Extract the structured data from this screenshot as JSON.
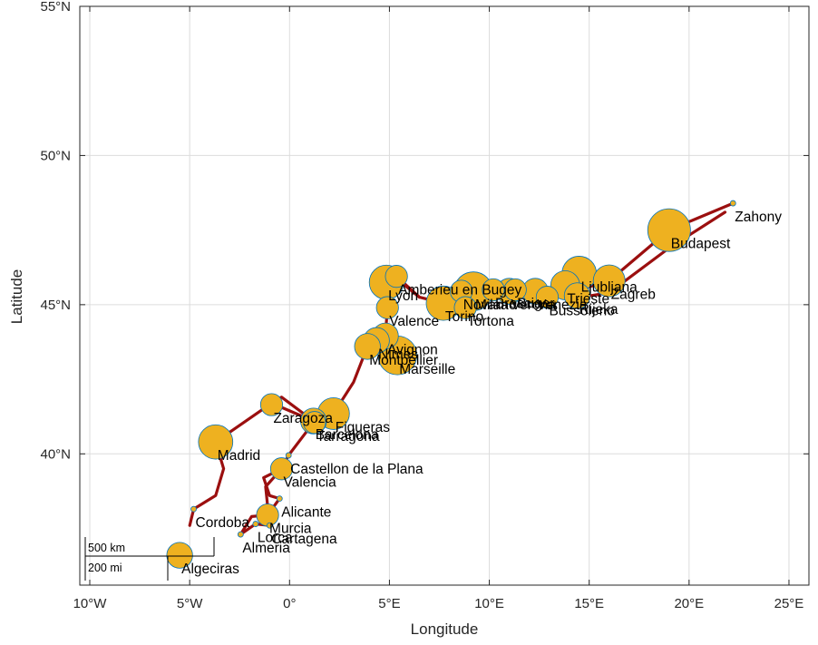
{
  "map": {
    "xlabel": "Longitude",
    "ylabel": "Latitude",
    "x_range": [
      -10.5,
      26
    ],
    "y_range": [
      35.6,
      55
    ],
    "x_ticks": [
      {
        "v": -10,
        "label": "10°W"
      },
      {
        "v": -5,
        "label": "5°W"
      },
      {
        "v": 0,
        "label": "0°"
      },
      {
        "v": 5,
        "label": "5°E"
      },
      {
        "v": 10,
        "label": "10°E"
      },
      {
        "v": 15,
        "label": "15°E"
      },
      {
        "v": 20,
        "label": "20°E"
      },
      {
        "v": 25,
        "label": "25°E"
      }
    ],
    "y_ticks": [
      {
        "v": 40,
        "label": "40°N"
      },
      {
        "v": 45,
        "label": "45°N"
      },
      {
        "v": 50,
        "label": "50°N"
      },
      {
        "v": 55,
        "label": "55°N"
      }
    ],
    "grid": true,
    "colors": {
      "route": "#9b0f0f",
      "bubble_fill": "#eeb120",
      "bubble_edge": "#0072bd"
    },
    "scale_bar": {
      "km_label": "500 km",
      "mi_label": "200 mi",
      "position": "bottom-left"
    }
  },
  "chart_data": {
    "type": "scatter",
    "cities": [
      {
        "name": "Zahony",
        "lon": 22.2,
        "lat": 48.4,
        "size": 1
      },
      {
        "name": "Budapest",
        "lon": 19.0,
        "lat": 47.5,
        "size": 10
      },
      {
        "name": "Ljubljana",
        "lon": 14.5,
        "lat": 46.05,
        "size": 6
      },
      {
        "name": "Zagreb",
        "lon": 16.0,
        "lat": 45.8,
        "size": 5
      },
      {
        "name": "Trieste",
        "lon": 13.8,
        "lat": 45.65,
        "size": 4
      },
      {
        "name": "Rijeka",
        "lon": 14.4,
        "lat": 45.3,
        "size": 3
      },
      {
        "name": "Venezia",
        "lon": 12.3,
        "lat": 45.45,
        "size": 3
      },
      {
        "name": "Verona",
        "lon": 11.0,
        "lat": 45.45,
        "size": 3
      },
      {
        "name": "Brescia",
        "lon": 10.2,
        "lat": 45.5,
        "size": 2
      },
      {
        "name": "Milano",
        "lon": 9.2,
        "lat": 45.45,
        "size": 8
      },
      {
        "name": "Novara",
        "lon": 8.6,
        "lat": 45.45,
        "size": 2
      },
      {
        "name": "Torino",
        "lon": 7.7,
        "lat": 45.05,
        "size": 6
      },
      {
        "name": "Tortona",
        "lon": 8.8,
        "lat": 44.9,
        "size": 2
      },
      {
        "name": "Bussoleno",
        "lon": 12.9,
        "lat": 45.25,
        "size": 2
      },
      {
        "name": "Buger",
        "lon": 11.3,
        "lat": 45.5,
        "size": 2
      },
      {
        "name": "Amberieu en Bugey",
        "lon": 5.35,
        "lat": 45.95,
        "size": 2
      },
      {
        "name": "Lyon",
        "lon": 4.85,
        "lat": 45.75,
        "size": 6
      },
      {
        "name": "Valence",
        "lon": 4.9,
        "lat": 44.9,
        "size": 2
      },
      {
        "name": "Avignon",
        "lon": 4.8,
        "lat": 43.95,
        "size": 3
      },
      {
        "name": "Nimes",
        "lon": 4.35,
        "lat": 43.8,
        "size": 3
      },
      {
        "name": "Montpellier",
        "lon": 3.9,
        "lat": 43.6,
        "size": 3
      },
      {
        "name": "Marseille",
        "lon": 5.4,
        "lat": 43.3,
        "size": 8
      },
      {
        "name": "Figueras",
        "lon": 2.2,
        "lat": 41.35,
        "size": 5
      },
      {
        "name": "Barcelona",
        "lon": 1.2,
        "lat": 41.1,
        "size": 3
      },
      {
        "name": "Tarragona",
        "lon": 1.25,
        "lat": 41.05,
        "size": 2
      },
      {
        "name": "Zaragoza",
        "lon": -0.9,
        "lat": 41.65,
        "size": 2
      },
      {
        "name": "Madrid",
        "lon": -3.7,
        "lat": 40.4,
        "size": 6
      },
      {
        "name": "Castellon de la Plana",
        "lon": -0.05,
        "lat": 39.95,
        "size": 1
      },
      {
        "name": "Valencia",
        "lon": -0.4,
        "lat": 39.5,
        "size": 2
      },
      {
        "name": "Alicante",
        "lon": -0.5,
        "lat": 38.5,
        "size": 1
      },
      {
        "name": "Murcia",
        "lon": -1.1,
        "lat": 37.95,
        "size": 2
      },
      {
        "name": "Cordoba",
        "lon": -4.8,
        "lat": 38.15,
        "size": 1
      },
      {
        "name": "Lorca",
        "lon": -1.7,
        "lat": 37.65,
        "size": 1
      },
      {
        "name": "Cartagena",
        "lon": -1.0,
        "lat": 37.6,
        "size": 1
      },
      {
        "name": "Almeria",
        "lon": -2.45,
        "lat": 37.3,
        "size": 1
      },
      {
        "name": "Algeciras",
        "lon": -5.5,
        "lat": 36.6,
        "size": 3
      }
    ],
    "route": [
      [
        22.2,
        48.4
      ],
      [
        19.0,
        47.5
      ],
      [
        16.0,
        45.8
      ],
      [
        14.5,
        45.5
      ],
      [
        13.8,
        45.65
      ],
      [
        12.3,
        45.45
      ],
      [
        11.0,
        45.45
      ],
      [
        9.2,
        45.45
      ],
      [
        7.7,
        45.05
      ],
      [
        6.5,
        45.25
      ],
      [
        5.35,
        45.95
      ],
      [
        4.85,
        45.75
      ],
      [
        4.9,
        44.9
      ],
      [
        4.8,
        43.95
      ],
      [
        4.35,
        43.8
      ],
      [
        3.9,
        43.6
      ],
      [
        3.2,
        42.4
      ],
      [
        2.2,
        41.35
      ],
      [
        1.2,
        41.1
      ],
      [
        -0.9,
        41.7
      ],
      [
        -3.7,
        40.4
      ],
      [
        -3.3,
        39.5
      ],
      [
        -3.7,
        38.6
      ],
      [
        -4.8,
        38.15
      ],
      [
        -5.0,
        37.6
      ],
      null,
      [
        16.0,
        45.8
      ],
      [
        15.0,
        46.05
      ],
      [
        14.5,
        45.3
      ],
      [
        13.8,
        45.4
      ],
      null,
      [
        21.8,
        48.1
      ],
      [
        19.0,
        46.9
      ],
      [
        16.0,
        45.4
      ],
      [
        14.6,
        45.25
      ],
      null,
      [
        9.2,
        45.45
      ],
      [
        8.6,
        45.0
      ],
      [
        7.7,
        45.05
      ],
      null,
      [
        11.0,
        45.45
      ],
      [
        12.3,
        45.6
      ],
      [
        11.5,
        45.25
      ],
      null,
      [
        5.35,
        45.95
      ],
      [
        4.8,
        45.6
      ],
      [
        5.5,
        45.8
      ],
      [
        6.5,
        45.25
      ],
      null,
      [
        4.8,
        43.95
      ],
      [
        5.4,
        43.3
      ],
      [
        4.6,
        43.5
      ],
      null,
      [
        -0.9,
        41.7
      ],
      [
        -0.4,
        41.9
      ],
      [
        1.2,
        41.1
      ],
      [
        0.8,
        40.7
      ],
      [
        -0.05,
        39.95
      ],
      [
        -0.4,
        39.5
      ],
      [
        -1.3,
        39.2
      ],
      [
        -1.0,
        38.6
      ],
      [
        -0.5,
        38.5
      ],
      [
        -1.1,
        37.95
      ],
      [
        -1.9,
        37.9
      ],
      [
        -2.45,
        37.3
      ],
      [
        -1.7,
        37.65
      ],
      [
        -1.0,
        37.6
      ],
      [
        -1.2,
        38.9
      ],
      [
        -0.4,
        39.5
      ]
    ]
  }
}
